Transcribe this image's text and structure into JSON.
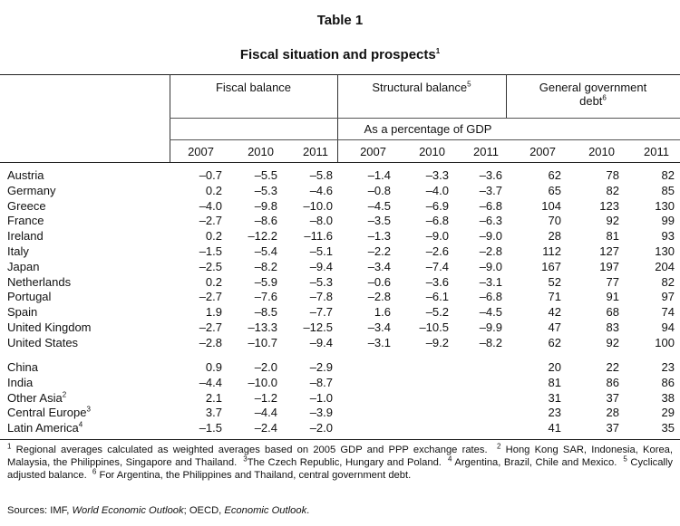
{
  "table": {
    "number": "Table 1",
    "title": "Fiscal situation and prospects",
    "title_note": "1",
    "groups": [
      {
        "label": "Fiscal balance",
        "note": ""
      },
      {
        "label": "Structural balance",
        "note": "5"
      },
      {
        "label_line1": "General government",
        "label_line2": "debt",
        "note": "6"
      }
    ],
    "unit_label": "As a percentage of GDP",
    "years": [
      "2007",
      "2010",
      "2011",
      "2007",
      "2010",
      "2011",
      "2007",
      "2010",
      "2011"
    ]
  },
  "rows_advanced": [
    {
      "name": "Austria",
      "note": "",
      "v": [
        "–0.7",
        "–5.5",
        "–5.8",
        "–1.4",
        "–3.3",
        "–3.6",
        "62",
        "78",
        "82"
      ]
    },
    {
      "name": "Germany",
      "note": "",
      "v": [
        "0.2",
        "–5.3",
        "–4.6",
        "–0.8",
        "–4.0",
        "–3.7",
        "65",
        "82",
        "85"
      ]
    },
    {
      "name": "Greece",
      "note": "",
      "v": [
        "–4.0",
        "–9.8",
        "–10.0",
        "–4.5",
        "–6.9",
        "–6.8",
        "104",
        "123",
        "130"
      ]
    },
    {
      "name": "France",
      "note": "",
      "v": [
        "–2.7",
        "–8.6",
        "–8.0",
        "–3.5",
        "–6.8",
        "–6.3",
        "70",
        "92",
        "99"
      ]
    },
    {
      "name": "Ireland",
      "note": "",
      "v": [
        "0.2",
        "–12.2",
        "–11.6",
        "–1.3",
        "–9.0",
        "–9.0",
        "28",
        "81",
        "93"
      ]
    },
    {
      "name": "Italy",
      "note": "",
      "v": [
        "–1.5",
        "–5.4",
        "–5.1",
        "–2.2",
        "–2.6",
        "–2.8",
        "112",
        "127",
        "130"
      ]
    },
    {
      "name": "Japan",
      "note": "",
      "v": [
        "–2.5",
        "–8.2",
        "–9.4",
        "–3.4",
        "–7.4",
        "–9.0",
        "167",
        "197",
        "204"
      ]
    },
    {
      "name": "Netherlands",
      "note": "",
      "v": [
        "0.2",
        "–5.9",
        "–5.3",
        "–0.6",
        "–3.6",
        "–3.1",
        "52",
        "77",
        "82"
      ]
    },
    {
      "name": "Portugal",
      "note": "",
      "v": [
        "–2.7",
        "–7.6",
        "–7.8",
        "–2.8",
        "–6.1",
        "–6.8",
        "71",
        "91",
        "97"
      ]
    },
    {
      "name": "Spain",
      "note": "",
      "v": [
        "1.9",
        "–8.5",
        "–7.7",
        "1.6",
        "–5.2",
        "–4.5",
        "42",
        "68",
        "74"
      ]
    },
    {
      "name": "United Kingdom",
      "note": "",
      "v": [
        "–2.7",
        "–13.3",
        "–12.5",
        "–3.4",
        "–10.5",
        "–9.9",
        "47",
        "83",
        "94"
      ]
    },
    {
      "name": "United States",
      "note": "",
      "v": [
        "–2.8",
        "–10.7",
        "–9.4",
        "–3.1",
        "–9.2",
        "–8.2",
        "62",
        "92",
        "100"
      ]
    }
  ],
  "rows_emerging": [
    {
      "name": "China",
      "note": "",
      "v": [
        "0.9",
        "–2.0",
        "–2.9",
        "",
        "",
        "",
        "20",
        "22",
        "23"
      ]
    },
    {
      "name": "India",
      "note": "",
      "v": [
        "–4.4",
        "–10.0",
        "–8.7",
        "",
        "",
        "",
        "81",
        "86",
        "86"
      ]
    },
    {
      "name": "Other Asia",
      "note": "2",
      "v": [
        "2.1",
        "–1.2",
        "–1.0",
        "",
        "",
        "",
        "31",
        "37",
        "38"
      ]
    },
    {
      "name": "Central Europe",
      "note": "3",
      "v": [
        "3.7",
        "–4.4",
        "–3.9",
        "",
        "",
        "",
        "23",
        "28",
        "29"
      ]
    },
    {
      "name": "Latin America",
      "note": "4",
      "v": [
        "–1.5",
        "–2.4",
        "–2.0",
        "",
        "",
        "",
        "41",
        "37",
        "35"
      ]
    }
  ],
  "footnotes": {
    "n1_mark": "1",
    "n1": " Regional averages calculated as weighted averages based on 2005 GDP and PPP exchange rates.",
    "n2_mark": "2",
    "n2": " Hong Kong SAR, Indonesia, Korea, Malaysia, the Philippines, Singapore and Thailand.",
    "n3_mark": "3",
    "n3": "The Czech Republic, Hungary and Poland.",
    "n4_mark": "4",
    "n4": " Argentina, Brazil, Chile and Mexico.",
    "n5_mark": "5",
    "n5": " Cyclically adjusted balance.",
    "n6_mark": "6",
    "n6": " For Argentina, the Philippines and Thailand, central government debt."
  },
  "sources": {
    "prefix": "Sources: IMF, ",
    "weo": "World Economic Outlook",
    "mid": "; OECD, ",
    "eo": "Economic Outlook",
    "suffix": "."
  }
}
